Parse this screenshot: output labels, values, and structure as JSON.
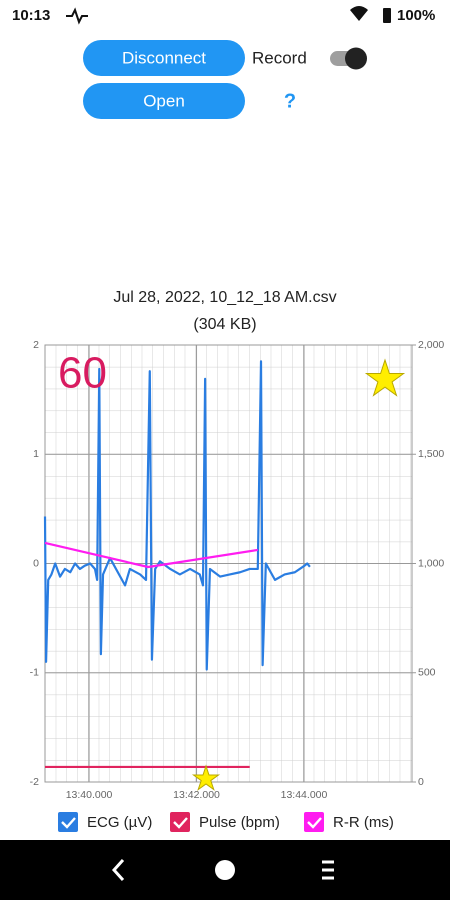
{
  "status_bar": {
    "time": "10:13",
    "battery": "100%"
  },
  "controls": {
    "disconnect": "Disconnect",
    "open": "Open",
    "record": "Record",
    "help": "?"
  },
  "file": {
    "name": "Jul 28, 2022, 10_12_18 AM.csv",
    "size": "(304 KB)"
  },
  "chart_data": {
    "type": "line",
    "annotations": [
      "60"
    ],
    "xlim": [
      819.18,
      826.01
    ],
    "xticks": [
      {
        "value": 820,
        "label": "13:40.000"
      },
      {
        "value": 822,
        "label": "13:42.000"
      },
      {
        "value": 824,
        "label": "13:44.000"
      }
    ],
    "ylim": [
      -2,
      2
    ],
    "yticks": [
      2,
      1,
      0,
      -1,
      -2
    ],
    "y2lim": [
      0,
      2000
    ],
    "y2ticks": [
      0,
      500,
      {
        "value": 1000,
        "label": "1,000"
      },
      {
        "value": 1500,
        "label": "1,500"
      },
      {
        "value": 2000,
        "label": "2,000"
      }
    ],
    "grid": true,
    "series": [
      {
        "name": "ECG (µV)",
        "color": "#2a7de1",
        "x": [
          819.18,
          819.2,
          819.24,
          819.3,
          819.37,
          819.46,
          819.55,
          819.65,
          819.74,
          819.83,
          819.92,
          820.02,
          820.11,
          820.15,
          820.19,
          820.22,
          820.26,
          820.39,
          820.58,
          820.67,
          820.76,
          820.95,
          821.06,
          821.13,
          821.17,
          821.23,
          821.32,
          821.51,
          821.69,
          821.88,
          822.06,
          822.12,
          822.16,
          822.19,
          822.25,
          822.44,
          822.62,
          822.81,
          822.99,
          823.14,
          823.2,
          823.23,
          823.29,
          823.46,
          823.64,
          823.83,
          824.01,
          824.06,
          824.11
        ],
        "values": [
          0.43,
          -0.9,
          -0.15,
          -0.1,
          0.0,
          -0.12,
          -0.05,
          -0.08,
          0.0,
          -0.05,
          -0.02,
          0.0,
          -0.05,
          -0.15,
          1.78,
          -0.83,
          -0.1,
          0.05,
          -0.12,
          -0.2,
          -0.05,
          -0.1,
          -0.15,
          1.76,
          -0.88,
          -0.05,
          0.02,
          -0.05,
          -0.1,
          -0.05,
          -0.1,
          -0.2,
          1.69,
          -0.97,
          -0.05,
          -0.12,
          -0.1,
          -0.08,
          -0.05,
          -0.05,
          1.85,
          -0.93,
          0.0,
          -0.15,
          -0.1,
          -0.08,
          -0.02,
          0.0,
          -0.03
        ]
      },
      {
        "name": "Pulse (bpm)",
        "color": "#e0245e",
        "axis": "y2",
        "x": [
          819.18,
          822.99
        ],
        "values": [
          69,
          69
        ]
      },
      {
        "name": "R-R (ms)",
        "color": "#ff1cf0",
        "axis": "y2",
        "x": [
          819.18,
          821.1,
          823.14
        ],
        "values": [
          1094,
          984,
          1062
        ]
      }
    ]
  }
}
